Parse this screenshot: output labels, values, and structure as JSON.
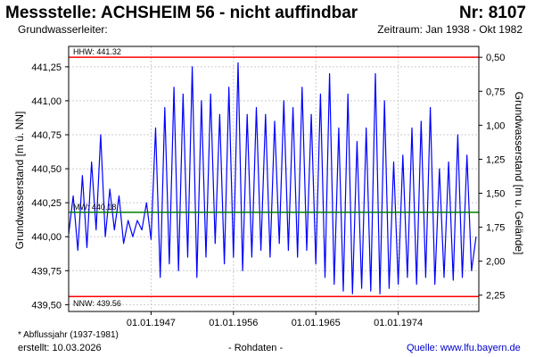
{
  "header": {
    "title": "Messstelle: ACHSHEIM 56 - nicht auffindbar",
    "nr": "Nr: 8107",
    "aquifer": "Grundwasserleiter:",
    "period": "Zeitraum: Jan 1938 - Okt 1982"
  },
  "footer": {
    "footnote": "* Abflussjahr (1937-1981)",
    "created": "erstellt:  10.03.2026",
    "rohdaten": "- Rohdaten -",
    "source": "Quelle:  www.lfu.bayern.de"
  },
  "chart_data": {
    "type": "line",
    "ylabel_left": "Grundwasserstand [m ü. NN]",
    "ylabel_right": "Grundwasserstand [m u. Gelände]",
    "ylim": [
      439.45,
      441.4
    ],
    "yticks": [
      439.5,
      439.75,
      440.0,
      440.25,
      440.5,
      440.75,
      441.0,
      441.25
    ],
    "ytick_labels": [
      "439,50",
      "439,75",
      "440,00",
      "440,25",
      "440,50",
      "440,75",
      "441,00",
      "441,25"
    ],
    "ylim_right": [
      2.37,
      0.42
    ],
    "yticks_right": [
      0.5,
      0.75,
      1.0,
      1.25,
      1.5,
      1.75,
      2.0,
      2.25
    ],
    "ytick_labels_right": [
      "0,50",
      "0,75",
      "1,00",
      "1,25",
      "1,50",
      "1,75",
      "2,00",
      "2,25"
    ],
    "xlim": [
      1938.0,
      1982.8
    ],
    "xticks": [
      1947.0,
      1956.0,
      1965.0,
      1974.0
    ],
    "xtick_labels": [
      "01.01.1947",
      "01.01.1956",
      "01.01.1965",
      "01.01.1974"
    ],
    "grid": true,
    "reference_lines": [
      {
        "label": "HHW: 441.32",
        "value": 441.32,
        "color": "#ff0000"
      },
      {
        "label": "MW: 440.18",
        "value": 440.18,
        "color": "#008000"
      },
      {
        "label": "NNW: 439.56",
        "value": 439.56,
        "color": "#ff0000"
      }
    ],
    "series": [
      {
        "color": "#0000ff",
        "x": [
          1938.0,
          1938.5,
          1939.0,
          1939.5,
          1940.0,
          1940.5,
          1941.0,
          1941.5,
          1942.0,
          1942.5,
          1943.0,
          1943.5,
          1944.0,
          1944.5,
          1945.0,
          1945.5,
          1946.0,
          1946.5,
          1947.0,
          1947.5,
          1948.0,
          1948.5,
          1949.0,
          1949.5,
          1950.0,
          1950.5,
          1951.0,
          1951.5,
          1952.0,
          1952.5,
          1953.0,
          1953.5,
          1954.0,
          1954.5,
          1955.0,
          1955.5,
          1956.0,
          1956.5,
          1957.0,
          1957.5,
          1958.0,
          1958.5,
          1959.0,
          1959.5,
          1960.0,
          1960.5,
          1961.0,
          1961.5,
          1962.0,
          1962.5,
          1963.0,
          1963.5,
          1964.0,
          1964.5,
          1965.0,
          1965.5,
          1966.0,
          1966.5,
          1967.0,
          1967.5,
          1968.0,
          1968.5,
          1969.0,
          1969.5,
          1970.0,
          1970.5,
          1971.0,
          1971.5,
          1972.0,
          1972.5,
          1973.0,
          1973.5,
          1974.0,
          1974.5,
          1975.0,
          1975.5,
          1976.0,
          1976.5,
          1977.0,
          1977.5,
          1978.0,
          1978.5,
          1979.0,
          1979.5,
          1980.0,
          1980.5,
          1981.0,
          1981.5,
          1982.0,
          1982.5
        ],
        "y": [
          440.02,
          440.3,
          439.9,
          440.45,
          439.92,
          440.55,
          440.05,
          440.75,
          440.0,
          440.35,
          440.05,
          440.3,
          439.95,
          440.12,
          440.0,
          440.12,
          440.05,
          440.25,
          439.98,
          440.8,
          439.7,
          440.95,
          439.8,
          441.1,
          439.75,
          441.05,
          439.85,
          441.25,
          439.7,
          441.0,
          439.85,
          441.05,
          439.95,
          440.9,
          439.8,
          441.1,
          439.85,
          441.28,
          439.75,
          440.9,
          439.85,
          440.95,
          439.9,
          440.9,
          439.85,
          440.85,
          439.95,
          441.0,
          439.9,
          440.95,
          439.85,
          441.1,
          439.9,
          440.9,
          439.8,
          441.05,
          439.7,
          441.2,
          439.65,
          440.8,
          439.6,
          441.05,
          439.58,
          440.7,
          439.62,
          440.8,
          439.6,
          441.2,
          439.58,
          441.0,
          439.62,
          440.55,
          439.65,
          440.6,
          439.7,
          440.8,
          439.65,
          440.85,
          439.7,
          440.95,
          439.65,
          440.5,
          439.7,
          440.55,
          439.68,
          440.75,
          439.7,
          440.6,
          439.75,
          440.0
        ]
      }
    ]
  }
}
